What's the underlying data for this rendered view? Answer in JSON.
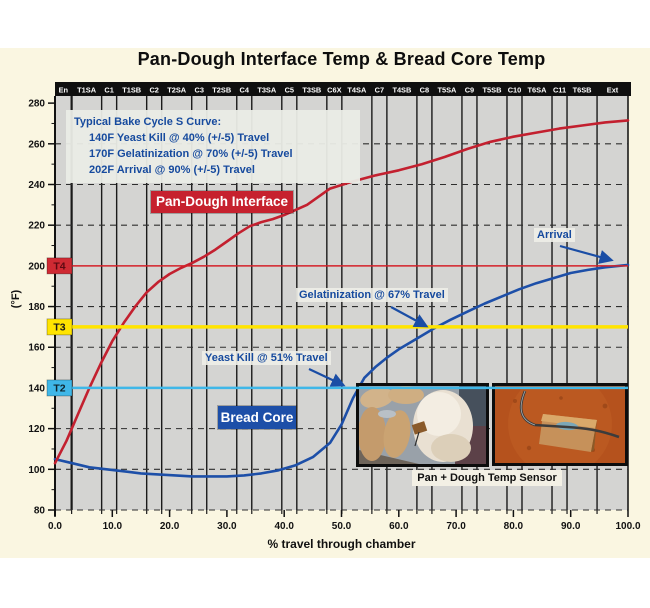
{
  "page_title": "Pan-Dough Interface Temp & Bread Core Temp",
  "chart_data": {
    "type": "line",
    "title": "Pan-Dough Interface Temp & Bread Core Temp",
    "xlabel": "% travel through chamber",
    "ylabel": "(°F)",
    "xlim": [
      0,
      100
    ],
    "ylim": [
      80,
      280
    ],
    "grid": "solid vertical lines at oven-zone boundaries; dashed horizontal lines every 20F",
    "legend_position": "labels on chart",
    "x_tick_labels": [
      "0.0",
      "10.0",
      "20.0",
      "30.0",
      "40.0",
      "50.0",
      "60.0",
      "70.0",
      "80.0",
      "90.0",
      "100.0"
    ],
    "y_ticks": [
      80,
      100,
      120,
      140,
      160,
      180,
      200,
      220,
      240,
      260,
      280
    ],
    "dashed_gridlines": [
      100,
      120,
      160,
      180,
      220,
      240,
      260
    ],
    "zones": [
      {
        "label": "En",
        "width": 2.9
      },
      {
        "label": "T1SA",
        "width": 5.24
      },
      {
        "label": "C1",
        "width": 2.62
      },
      {
        "label": "T1SB",
        "width": 5.24
      },
      {
        "label": "C2",
        "width": 2.62
      },
      {
        "label": "T2SA",
        "width": 5.24
      },
      {
        "label": "C3",
        "width": 2.62
      },
      {
        "label": "T2SB",
        "width": 5.24
      },
      {
        "label": "C4",
        "width": 2.62
      },
      {
        "label": "T3SA",
        "width": 5.24
      },
      {
        "label": "C5",
        "width": 2.62
      },
      {
        "label": "T3SB",
        "width": 5.24
      },
      {
        "label": "C6X",
        "width": 2.62
      },
      {
        "label": "T4SA",
        "width": 5.24
      },
      {
        "label": "C7",
        "width": 2.62
      },
      {
        "label": "T4SB",
        "width": 5.24
      },
      {
        "label": "C8",
        "width": 2.62
      },
      {
        "label": "T5SA",
        "width": 5.24
      },
      {
        "label": "C9",
        "width": 2.62
      },
      {
        "label": "T5SB",
        "width": 5.24
      },
      {
        "label": "C10",
        "width": 2.62
      },
      {
        "label": "T6SA",
        "width": 5.24
      },
      {
        "label": "C11",
        "width": 2.62
      },
      {
        "label": "T6SB",
        "width": 5.24
      },
      {
        "label": "Ext",
        "width": 5.4
      }
    ],
    "series": [
      {
        "name": "Pan-Dough Interface",
        "color": "#c3202f",
        "points": [
          [
            0,
            103
          ],
          [
            2,
            114
          ],
          [
            4,
            127
          ],
          [
            6,
            140
          ],
          [
            8,
            152
          ],
          [
            10,
            163
          ],
          [
            12,
            172
          ],
          [
            14,
            180
          ],
          [
            16,
            187
          ],
          [
            18,
            192
          ],
          [
            20,
            196
          ],
          [
            22,
            199
          ],
          [
            24,
            201.5
          ],
          [
            26,
            204.5
          ],
          [
            28,
            208
          ],
          [
            30,
            212
          ],
          [
            32,
            216
          ],
          [
            34,
            219.5
          ],
          [
            36,
            221.5
          ],
          [
            38,
            223
          ],
          [
            40,
            225
          ],
          [
            44,
            230
          ],
          [
            48,
            238
          ],
          [
            52,
            241.5
          ],
          [
            56,
            244.5
          ],
          [
            60,
            247
          ],
          [
            64,
            250
          ],
          [
            68,
            253.5
          ],
          [
            72,
            257.5
          ],
          [
            76,
            261
          ],
          [
            80,
            263.5
          ],
          [
            84,
            265.5
          ],
          [
            88,
            267.5
          ],
          [
            92,
            269
          ],
          [
            96,
            270.5
          ],
          [
            100,
            271.5
          ]
        ]
      },
      {
        "name": "Bread Core",
        "color": "#1d4fa8",
        "points": [
          [
            0,
            105
          ],
          [
            3,
            103
          ],
          [
            6,
            101
          ],
          [
            9,
            100
          ],
          [
            12,
            99
          ],
          [
            15,
            98
          ],
          [
            18,
            97.5
          ],
          [
            21,
            97
          ],
          [
            24,
            96.5
          ],
          [
            27,
            96.5
          ],
          [
            30,
            96.5
          ],
          [
            33,
            97
          ],
          [
            36,
            98
          ],
          [
            39,
            99.5
          ],
          [
            42,
            102
          ],
          [
            45,
            106
          ],
          [
            48,
            113
          ],
          [
            50,
            122
          ],
          [
            52,
            135
          ],
          [
            54,
            145
          ],
          [
            56,
            150.5
          ],
          [
            58,
            155
          ],
          [
            60,
            159
          ],
          [
            63,
            164
          ],
          [
            66,
            169
          ],
          [
            69,
            173.5
          ],
          [
            72,
            177.5
          ],
          [
            75,
            181.5
          ],
          [
            78,
            185
          ],
          [
            81,
            188.5
          ],
          [
            84,
            191.5
          ],
          [
            87,
            194
          ],
          [
            90,
            196.5
          ],
          [
            93,
            198
          ],
          [
            96,
            199.3
          ],
          [
            100,
            200.5
          ]
        ]
      }
    ],
    "thresholds": [
      {
        "label": "T4",
        "temp": 200,
        "color": "#d52029",
        "badge_bg": "#cf2a33",
        "badge_fg": "#5d0a12",
        "line_width": 1.6
      },
      {
        "label": "T3",
        "temp": 170,
        "color": "#ffe400",
        "badge_bg": "#ffe400",
        "badge_fg": "#1a1a1a",
        "line_width": 3.5
      },
      {
        "label": "T2",
        "temp": 140,
        "color": "#3fb7e8",
        "badge_bg": "#3fb7e8",
        "badge_fg": "#10262e",
        "line_width": 2.5
      }
    ],
    "callouts": [
      {
        "text": "Arrival",
        "arrow_from": [
          560,
          246
        ],
        "arrow_to": [
          611,
          260
        ]
      },
      {
        "text": "Gelatinization @ 67% Travel",
        "arrow_from": [
          391,
          307
        ],
        "arrow_to": [
          426,
          326
        ]
      },
      {
        "text": "Yeast Kill @ 51% Travel",
        "arrow_from": [
          309,
          369
        ],
        "arrow_to": [
          343,
          385
        ]
      }
    ]
  },
  "note": {
    "lines": [
      "Typical Bake Cycle S Curve:",
      "140F Yeast Kill @ 40% (+/-5) Travel",
      "170F Gelatinization @ 70% (+/-5) Travel",
      "202F Arrival @ 90% (+/-5) Travel"
    ]
  },
  "inset": {
    "caption": "Pan + Dough Temp Sensor"
  },
  "colors": {
    "page_bg": "#ffffff",
    "canvas_bg": "#faf6e1",
    "plot_bg": "#d4d4d2",
    "header_bg": "#0f0f0f",
    "annotation_blue": "#164a9e",
    "pan_dough_red": "#c3202f",
    "bread_core_blue": "#1d4fa8",
    "t3_yellow": "#ffe400",
    "t2_cyan": "#3fb7e8"
  }
}
